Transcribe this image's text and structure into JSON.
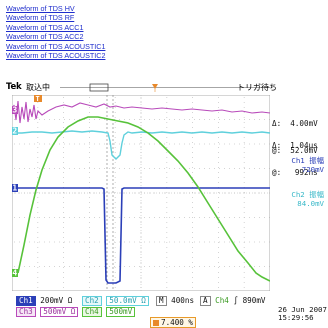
{
  "links": [
    "Waveform of TDS HV",
    "Waveform of TDS RF",
    "Waveform of TDS ACC1",
    "Waveform of TDS ACC2",
    "Waveform of TDS ACOUSTIC1",
    "Waveform of TDS ACOUSTIC2"
  ],
  "scope": {
    "brand": "Tek",
    "acq_state": "取込中",
    "trig_state": "トリガ待ち",
    "cursor": {
      "d_v": "Δ:  4.00mV",
      "at_v": "@:  52.0mV",
      "d_t": "Δ:  1.04μs",
      "at_t": "@:   992ns"
    },
    "ch1_rms_label": "Ch1 振幅",
    "ch1_rms_value": "720mV",
    "ch2_rms_label": "Ch2 振幅",
    "ch2_rms_value": "84.0mV",
    "markers": {
      "ch1": "1",
      "ch2": "2",
      "ch3": "3",
      "ch4": "4",
      "trigger": "T"
    },
    "bottom": {
      "ch1_label": "Ch1",
      "ch1_scale": "200mV Ω",
      "ch2_label": "Ch2",
      "ch2_scale": "50.0mV Ω",
      "time_label": "M",
      "time_scale": "400ns",
      "trig_src_label": "A",
      "trig_ch": "Ch4",
      "trig_slope": "∫",
      "trig_level": "890mV",
      "ch3_label": "Ch3",
      "ch3_scale": "500mV Ω",
      "ch4_label": "Ch4",
      "ch4_scale": "500mV",
      "trigger_pos": "7.400 %",
      "date": "26 Jun  2007",
      "time": "15:29:56"
    },
    "colors": {
      "ch1": "#2b3fb8",
      "ch2": "#5fd0dc",
      "ch3": "#b84aba",
      "ch4": "#57c23a",
      "grid": "#b7b7b7",
      "link": "#1f2ecc"
    }
  }
}
